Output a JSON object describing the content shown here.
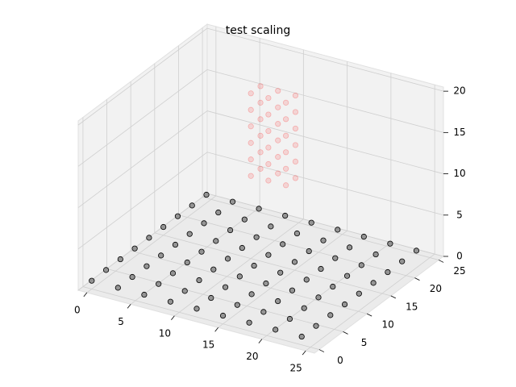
{
  "chart_data": {
    "type": "scatter3d",
    "title": "test scaling",
    "xlim": [
      -1,
      26
    ],
    "ylim": [
      -1,
      26
    ],
    "zlim": [
      0,
      20.5
    ],
    "xticks": [
      0,
      5,
      10,
      15,
      20,
      25
    ],
    "yticks": [
      0,
      5,
      10,
      15,
      20,
      25
    ],
    "zticks": [
      0,
      5,
      10,
      15,
      20
    ],
    "grid": true,
    "series": [
      {
        "facecolor": "#808080",
        "edgecolor": "#000000",
        "alpha": 0.8,
        "x": [
          0,
          3,
          6,
          9,
          12,
          15,
          18,
          21,
          24,
          0,
          3,
          6,
          9,
          12,
          15,
          18,
          21,
          24,
          0,
          3,
          6,
          9,
          12,
          15,
          18,
          21,
          24,
          0,
          3,
          6,
          9,
          12,
          15,
          18,
          21,
          24,
          0,
          3,
          6,
          9,
          12,
          15,
          18,
          21,
          24,
          0,
          3,
          6,
          9,
          12,
          15,
          18,
          21,
          24,
          0,
          3,
          6,
          9,
          12,
          15,
          18,
          21,
          24,
          0,
          3,
          6,
          9,
          12,
          15,
          18,
          21,
          24,
          0,
          3,
          6,
          9,
          12,
          15,
          18,
          21,
          24
        ],
        "y": [
          24,
          24,
          24,
          24,
          24,
          24,
          24,
          24,
          24,
          21,
          21,
          21,
          21,
          21,
          21,
          21,
          21,
          21,
          18,
          18,
          18,
          18,
          18,
          18,
          18,
          18,
          18,
          15,
          15,
          15,
          15,
          15,
          15,
          15,
          15,
          15,
          12,
          12,
          12,
          12,
          12,
          12,
          12,
          12,
          12,
          9,
          9,
          9,
          9,
          9,
          9,
          9,
          9,
          9,
          6,
          6,
          6,
          6,
          6,
          6,
          6,
          6,
          6,
          3,
          3,
          3,
          3,
          3,
          3,
          3,
          3,
          3,
          0,
          0,
          0,
          0,
          0,
          0,
          0,
          0,
          0
        ],
        "z": [
          1,
          1,
          1,
          1,
          1,
          1,
          1,
          1,
          1,
          1,
          1,
          1,
          1,
          1,
          1,
          1,
          1,
          1,
          1,
          1,
          1,
          1,
          1,
          1,
          1,
          1,
          1,
          1,
          1,
          1,
          1,
          1,
          1,
          1,
          1,
          1,
          1,
          1,
          1,
          1,
          1,
          1,
          1,
          1,
          1,
          1,
          1,
          1,
          1,
          1,
          1,
          1,
          1,
          1,
          1,
          1,
          1,
          1,
          1,
          1,
          1,
          1,
          1,
          1,
          1,
          1,
          1,
          1,
          1,
          1,
          1,
          1,
          1,
          1,
          1,
          1,
          1,
          1,
          1,
          1,
          1
        ]
      },
      {
        "facecolor": "#ff0000",
        "edgecolor": "#ff0000",
        "alpha": 0.12,
        "x": [
          10,
          12,
          14,
          10,
          12,
          14,
          10,
          12,
          14,
          10,
          12,
          14,
          10,
          12,
          14,
          10,
          12,
          14,
          10,
          12,
          14,
          10,
          12,
          14,
          10,
          12,
          14,
          10,
          12,
          14,
          10,
          12,
          14,
          10,
          12,
          14
        ],
        "y": [
          17,
          17,
          17,
          15,
          15,
          15,
          17,
          17,
          17,
          15,
          15,
          15,
          17,
          17,
          17,
          15,
          15,
          15,
          17,
          17,
          17,
          15,
          15,
          15,
          17,
          17,
          17,
          15,
          15,
          15,
          17,
          17,
          17,
          15,
          15,
          15
        ],
        "z": [
          10,
          10,
          10,
          10,
          10,
          10,
          12,
          12,
          12,
          12,
          12,
          12,
          14,
          14,
          14,
          14,
          14,
          14,
          16,
          16,
          16,
          16,
          16,
          16,
          18,
          18,
          18,
          18,
          18,
          18,
          20,
          20,
          20,
          20,
          20,
          20
        ]
      }
    ]
  }
}
